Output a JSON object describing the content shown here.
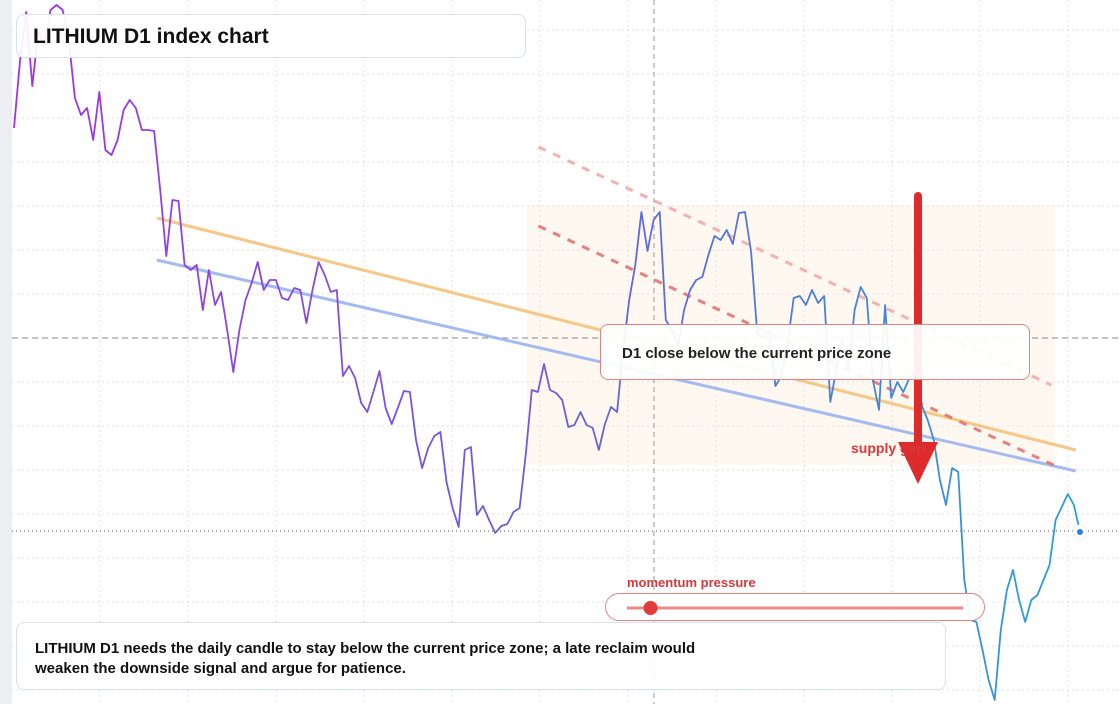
{
  "chart_data": {
    "type": "line",
    "title": "LITHIUM D1 index chart",
    "annotations": [
      "D1 close below the current price zone",
      "supply gap"
    ],
    "note": "LITHIUM D1 needs the daily candle to stay below the current price zone; a late reclaim would weaken the downside signal and argue for patience.",
    "momentum": {
      "label": "momentum pressure",
      "value": 7,
      "range": [
        0,
        100
      ]
    },
    "ylim": [
      0,
      70.4
    ],
    "xlim": [
      0,
      1
    ],
    "gradient": [
      "#a233e6",
      "#6a5fdc",
      "#2aa0d8"
    ],
    "values": [
      57.6,
      64.4,
      69.2,
      61.8,
      67.4,
      65.9,
      69.4,
      69.9,
      69.4,
      66.4,
      60.6,
      58.9,
      59.6,
      56.4,
      61.2,
      55.4,
      54.9,
      56.4,
      59.4,
      60.4,
      59.6,
      57.4,
      57.4,
      57.3,
      51.4,
      44.8,
      50.4,
      50.3,
      43.9,
      43.4,
      43.9,
      39.4,
      43.4,
      39.9,
      41.2,
      37.4,
      33.2,
      37.4,
      40.4,
      42.1,
      44.2,
      41.4,
      42.4,
      42.4,
      40.6,
      40.4,
      41.6,
      41.4,
      38.1,
      41.4,
      44.2,
      42.9,
      41.2,
      41.4,
      32.8,
      33.8,
      32.6,
      30.1,
      29.2,
      31.2,
      33.3,
      29.6,
      28.0,
      29.6,
      31.3,
      31.2,
      26.4,
      23.6,
      25.6,
      26.8,
      27.2,
      22.2,
      19.6,
      17.7,
      25.4,
      25.7,
      18.9,
      19.8,
      18.4,
      17.1,
      17.8,
      18.0,
      19.2,
      19.6,
      24.9,
      31.4,
      31.2,
      34.0,
      31.4,
      31.1,
      30.4,
      27.7,
      27.9,
      29.2,
      27.9,
      27.6,
      25.4,
      28.0,
      29.7,
      29.2,
      35.4,
      40.4,
      43.9,
      49.2,
      45.3,
      48.4,
      49.2,
      38.4,
      37.4,
      35.7,
      39.4,
      41.4,
      42.4,
      42.7,
      44.9,
      46.8,
      46.4,
      47.4,
      46.0,
      49.1,
      49.2,
      45.2,
      37.1,
      36.6,
      37.4,
      31.8,
      32.8,
      36.1,
      40.6,
      40.8,
      39.9,
      41.4,
      40.1,
      40.8,
      30.2,
      33.4,
      36.4,
      33.4,
      39.4,
      41.7,
      40.6,
      32.4,
      29.4,
      39.9,
      30.6,
      32.2,
      31.2,
      32.6,
      33.2,
      29.9,
      28.4,
      26.4,
      22.4,
      19.9,
      23.6,
      23.2,
      12.4,
      8.4,
      8.2,
      5.4,
      2.4,
      0.4,
      7.4,
      11.4,
      13.4,
      10.4,
      8.2,
      10.4,
      10.9,
      12.4,
      13.9,
      18.4,
      19.7,
      21.0,
      19.9,
      17.2
    ],
    "trendlines": [
      {
        "color": "#f6c27a",
        "dash": false,
        "x": [
          0.134,
          0.996
        ],
        "values": [
          48.6,
          25.4
        ]
      },
      {
        "color": "#9bb4f0",
        "dash": false,
        "x": [
          0.134,
          0.996
        ],
        "values": [
          44.4,
          23.3
        ]
      },
      {
        "color": "#e57373",
        "dash": true,
        "x": [
          0.492,
          0.977
        ],
        "values": [
          47.8,
          23.8
        ]
      },
      {
        "color": "#f2aaaa",
        "dash": true,
        "x": [
          0.492,
          0.973
        ],
        "values": [
          55.7,
          31.9
        ]
      }
    ],
    "levels": [
      {
        "value": 36.6,
        "color": "#888",
        "dash": "6,4"
      },
      {
        "value": 17.3,
        "color": "#555",
        "dash": "1,3"
      }
    ]
  }
}
